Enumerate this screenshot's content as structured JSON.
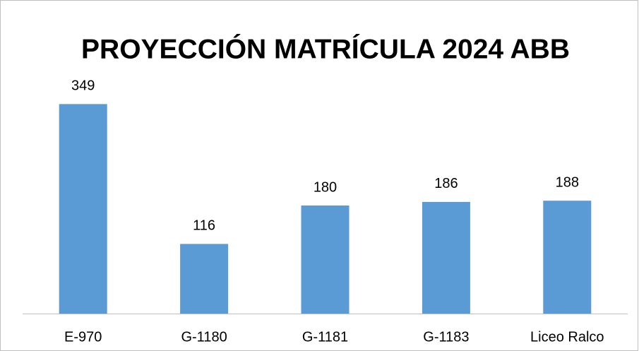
{
  "chart_data": {
    "type": "bar",
    "title": "PROYECCIÓN MATRÍCULA 2024 ABB",
    "categories": [
      "E-970",
      "G-1180",
      "G-1181",
      "G-1183",
      "Liceo Ralco"
    ],
    "values": [
      349,
      116,
      180,
      186,
      188
    ],
    "color": "#5b9bd5",
    "ylim": [
      0,
      400
    ],
    "data_labels": true
  }
}
